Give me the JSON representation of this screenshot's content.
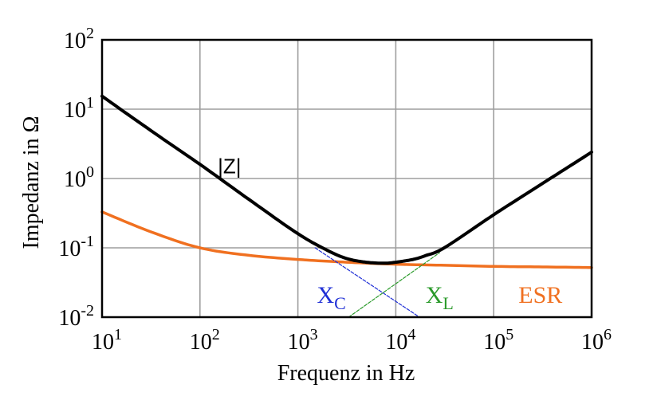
{
  "chart_data": {
    "type": "line",
    "xlabel": "Frequenz in Hz",
    "ylabel": "Impedanz in Ω",
    "x_scale": "log",
    "y_scale": "log",
    "xlim": [
      10,
      1000000
    ],
    "ylim": [
      0.01,
      100
    ],
    "grid": true,
    "x_ticks": [
      {
        "value": 10,
        "base": "10",
        "exp": "1"
      },
      {
        "value": 100,
        "base": "10",
        "exp": "2"
      },
      {
        "value": 1000,
        "base": "10",
        "exp": "3"
      },
      {
        "value": 10000,
        "base": "10",
        "exp": "4"
      },
      {
        "value": 100000,
        "base": "10",
        "exp": "5"
      },
      {
        "value": 1000000,
        "base": "10",
        "exp": "6"
      }
    ],
    "y_ticks": [
      {
        "value": 0.01,
        "base": "10",
        "exp": "-2"
      },
      {
        "value": 0.1,
        "base": "10",
        "exp": "-1"
      },
      {
        "value": 1,
        "base": "10",
        "exp": "0"
      },
      {
        "value": 10,
        "base": "10",
        "exp": "1"
      },
      {
        "value": 100,
        "base": "10",
        "exp": "2"
      }
    ],
    "series": [
      {
        "name": "|Z|",
        "color": "#000000",
        "x": [
          10,
          31.6,
          100,
          316,
          1000,
          2000,
          3160,
          5000,
          7500,
          10000,
          15000,
          20000,
          31600,
          100000,
          316000,
          1000000
        ],
        "y": [
          15.4,
          4.9,
          1.6,
          0.5,
          0.16,
          0.092,
          0.07,
          0.062,
          0.06,
          0.062,
          0.068,
          0.077,
          0.101,
          0.3,
          0.85,
          2.4
        ]
      },
      {
        "name": "ESR",
        "color": "#f07020",
        "x": [
          10,
          31.6,
          100,
          316,
          1000,
          3160,
          10000,
          31600,
          100000,
          316000,
          1000000
        ],
        "y": [
          0.33,
          0.17,
          0.1,
          0.078,
          0.068,
          0.062,
          0.058,
          0.056,
          0.054,
          0.053,
          0.052
        ]
      },
      {
        "name": "X",
        "label_sub": "C",
        "color": "#1f2fd6",
        "dashed": true,
        "x": [
          1500,
          17500
        ],
        "y": [
          0.1,
          0.01
        ]
      },
      {
        "name": "X",
        "label_sub": "L",
        "color": "#2a9a2a",
        "dashed": true,
        "x": [
          3300,
          28000
        ],
        "y": [
          0.01,
          0.085
        ]
      }
    ],
    "annotations": [
      {
        "series": 0,
        "text": "|Z|",
        "x": 200,
        "y": 1.4
      },
      {
        "series": 2,
        "text": "X",
        "sub": "C",
        "x": 2200,
        "y": 0.022
      },
      {
        "series": 3,
        "text": "X",
        "sub": "L",
        "x": 28000,
        "y": 0.022
      },
      {
        "series": 1,
        "text": "ESR",
        "x": 300000,
        "y": 0.022
      }
    ]
  }
}
